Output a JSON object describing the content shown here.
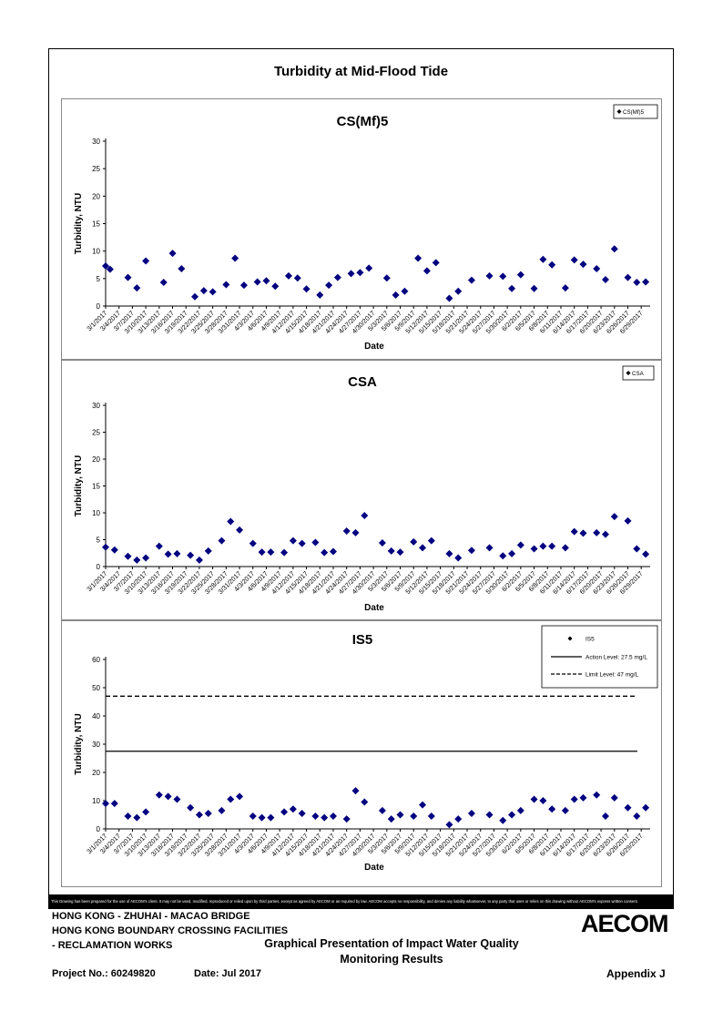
{
  "page": {
    "title": "Turbidity at Mid-Flood Tide"
  },
  "footer": {
    "notice": "This Drawing has been prepared for the use of AECOM's client. It may not be used, modified, reproduced or relied upon by third parties, except as agreed by AECOM or as required by law. AECOM accepts no responsibility, and denies any liability whatsoever, to any party that uses or relies on this drawing without AECOM's express written consent.",
    "project_line_1": "HONG KONG - ZHUHAI - MACAO BRIDGE",
    "project_line_2": "HONG KONG BOUNDARY CROSSING FACILITIES",
    "project_line_3": "- RECLAMATION WORKS",
    "center_title_1": "Graphical Presentation of Impact Water Quality",
    "center_title_2": "Monitoring Results",
    "project_no": "Project No.: 60249820",
    "date": "Date: Jul 2017",
    "logo": "AECOM",
    "appendix": "Appendix J"
  },
  "chart_data": [
    {
      "type": "scatter",
      "title": "CS(Mf)5",
      "xlabel": "Date",
      "ylabel": "Turbidity, NTU",
      "ylim": [
        0,
        30
      ],
      "yticks": [
        0,
        5,
        10,
        15,
        20,
        25,
        30
      ],
      "grid": false,
      "legend": "top-right",
      "tick_labels": [
        "3/1/2017",
        "3/4/2017",
        "3/7/2017",
        "3/10/2017",
        "3/13/2017",
        "3/16/2017",
        "3/19/2017",
        "3/22/2017",
        "3/25/2017",
        "3/28/2017",
        "3/31/2017",
        "4/3/2017",
        "4/6/2017",
        "4/9/2017",
        "4/12/2017",
        "4/15/2017",
        "4/18/2017",
        "4/21/2017",
        "4/24/2017",
        "4/27/2017",
        "4/30/2017",
        "5/3/2017",
        "5/6/2017",
        "5/9/2017",
        "5/12/2017",
        "5/15/2017",
        "5/18/2017",
        "5/21/2017",
        "5/24/2017",
        "5/27/2017",
        "5/30/2017",
        "6/2/2017",
        "6/5/2017",
        "6/8/2017",
        "6/11/2017",
        "6/14/2017",
        "6/17/2017",
        "6/20/2017",
        "6/23/2017",
        "6/26/2017",
        "6/29/2017"
      ],
      "series": [
        {
          "name": "CS(Mf)5",
          "color": "#000080",
          "marker": "diamond",
          "x": [
            "3/1/2017",
            "3/2/2017",
            "3/6/2017",
            "3/8/2017",
            "3/10/2017",
            "3/14/2017",
            "3/16/2017",
            "3/18/2017",
            "3/21/2017",
            "3/23/2017",
            "3/25/2017",
            "3/28/2017",
            "3/30/2017",
            "4/1/2017",
            "4/4/2017",
            "4/6/2017",
            "4/8/2017",
            "4/11/2017",
            "4/13/2017",
            "4/15/2017",
            "4/18/2017",
            "4/20/2017",
            "4/22/2017",
            "4/25/2017",
            "4/27/2017",
            "4/29/2017",
            "5/3/2017",
            "5/5/2017",
            "5/7/2017",
            "5/10/2017",
            "5/12/2017",
            "5/14/2017",
            "5/17/2017",
            "5/19/2017",
            "5/22/2017",
            "5/26/2017",
            "5/29/2017",
            "5/31/2017",
            "6/2/2017",
            "6/5/2017",
            "6/7/2017",
            "6/9/2017",
            "6/12/2017",
            "6/14/2017",
            "6/16/2017",
            "6/19/2017",
            "6/21/2017",
            "6/23/2017",
            "6/26/2017",
            "6/28/2017",
            "6/30/2017"
          ],
          "y": [
            7.3,
            6.7,
            5.2,
            3.3,
            8.2,
            4.3,
            9.6,
            6.8,
            1.7,
            2.8,
            2.6,
            3.9,
            8.7,
            3.8,
            4.4,
            4.6,
            3.6,
            5.5,
            5.1,
            3.1,
            2.0,
            3.8,
            5.2,
            5.9,
            6.1,
            6.9,
            5.1,
            2.0,
            2.7,
            8.7,
            6.4,
            7.9,
            1.4,
            2.7,
            4.7,
            5.5,
            5.4,
            3.2,
            5.7,
            3.2,
            8.5,
            7.5,
            3.3,
            8.4,
            7.6,
            6.8,
            4.8,
            10.4,
            5.2,
            4.3,
            4.4
          ]
        }
      ]
    },
    {
      "type": "scatter",
      "title": "CSA",
      "xlabel": "Date",
      "ylabel": "Turbidity, NTU",
      "ylim": [
        0,
        30
      ],
      "yticks": [
        0,
        5,
        10,
        15,
        20,
        25,
        30
      ],
      "grid": false,
      "legend": "top-right",
      "tick_labels": [
        "3/1/2017",
        "3/4/2017",
        "3/7/2017",
        "3/10/2017",
        "3/13/2017",
        "3/16/2017",
        "3/19/2017",
        "3/22/2017",
        "3/25/2017",
        "3/28/2017",
        "3/31/2017",
        "4/3/2017",
        "4/6/2017",
        "4/9/2017",
        "4/12/2017",
        "4/15/2017",
        "4/18/2017",
        "4/21/2017",
        "4/24/2017",
        "4/27/2017",
        "4/30/2017",
        "5/3/2017",
        "5/6/2017",
        "5/9/2017",
        "5/12/2017",
        "5/15/2017",
        "5/18/2017",
        "5/21/2017",
        "5/24/2017",
        "5/27/2017",
        "5/30/2017",
        "6/2/2017",
        "6/5/2017",
        "6/8/2017",
        "6/11/2017",
        "6/14/2017",
        "6/17/2017",
        "6/20/2017",
        "6/23/2017",
        "6/26/2017",
        "6/29/2017"
      ],
      "series": [
        {
          "name": "CSA",
          "color": "#000080",
          "marker": "diamond",
          "x": [
            "3/1/2017",
            "3/3/2017",
            "3/6/2017",
            "3/8/2017",
            "3/10/2017",
            "3/13/2017",
            "3/15/2017",
            "3/17/2017",
            "3/20/2017",
            "3/22/2017",
            "3/24/2017",
            "3/27/2017",
            "3/29/2017",
            "3/31/2017",
            "4/3/2017",
            "4/5/2017",
            "4/7/2017",
            "4/10/2017",
            "4/12/2017",
            "4/14/2017",
            "4/17/2017",
            "4/19/2017",
            "4/21/2017",
            "4/24/2017",
            "4/26/2017",
            "4/28/2017",
            "5/2/2017",
            "5/4/2017",
            "5/6/2017",
            "5/9/2017",
            "5/11/2017",
            "5/13/2017",
            "5/17/2017",
            "5/19/2017",
            "5/22/2017",
            "5/26/2017",
            "5/29/2017",
            "5/31/2017",
            "6/2/2017",
            "6/5/2017",
            "6/7/2017",
            "6/9/2017",
            "6/12/2017",
            "6/14/2017",
            "6/16/2017",
            "6/19/2017",
            "6/21/2017",
            "6/23/2017",
            "6/26/2017",
            "6/28/2017",
            "6/30/2017"
          ],
          "y": [
            3.6,
            3.1,
            1.9,
            1.2,
            1.6,
            3.8,
            2.3,
            2.4,
            2.1,
            1.2,
            2.9,
            4.8,
            8.4,
            6.8,
            4.3,
            2.7,
            2.7,
            2.6,
            4.8,
            4.3,
            4.5,
            2.6,
            2.8,
            6.6,
            6.3,
            9.5,
            4.4,
            2.9,
            2.7,
            4.6,
            3.5,
            4.8,
            2.4,
            1.6,
            3.0,
            3.5,
            2.0,
            2.4,
            4.0,
            3.3,
            3.8,
            3.8,
            3.5,
            6.5,
            6.2,
            6.3,
            6.0,
            9.3,
            8.5,
            3.3,
            2.3
          ]
        }
      ]
    },
    {
      "type": "scatter",
      "title": "IS5",
      "xlabel": "Date",
      "ylabel": "Turbidity, NTU",
      "ylim": [
        0,
        60
      ],
      "yticks": [
        0,
        10,
        20,
        30,
        40,
        50,
        60
      ],
      "grid": false,
      "legend": "top-right",
      "tick_labels": [
        "3/1/2017",
        "3/4/2017",
        "3/7/2017",
        "3/10/2017",
        "3/13/2017",
        "3/16/2017",
        "3/19/2017",
        "3/22/2017",
        "3/25/2017",
        "3/28/2017",
        "3/31/2017",
        "4/3/2017",
        "4/6/2017",
        "4/9/2017",
        "4/12/2017",
        "4/15/2017",
        "4/18/2017",
        "4/21/2017",
        "4/24/2017",
        "4/27/2017",
        "4/30/2017",
        "5/3/2017",
        "5/6/2017",
        "5/9/2017",
        "5/12/2017",
        "5/15/2017",
        "5/18/2017",
        "5/21/2017",
        "5/24/2017",
        "5/27/2017",
        "5/30/2017",
        "6/2/2017",
        "6/5/2017",
        "6/8/2017",
        "6/11/2017",
        "6/14/2017",
        "6/17/2017",
        "6/20/2017",
        "6/23/2017",
        "6/26/2017",
        "6/29/2017"
      ],
      "reference_lines": [
        {
          "name": "Action Level: 27.5 mg/L",
          "y": 27.5,
          "style": "solid",
          "color": "#000000"
        },
        {
          "name": "Limit Level: 47 mg/L",
          "y": 47,
          "style": "dashed",
          "color": "#000000"
        }
      ],
      "series": [
        {
          "name": "IS5",
          "color": "#000080",
          "marker": "diamond",
          "x": [
            "3/1/2017",
            "3/3/2017",
            "3/6/2017",
            "3/8/2017",
            "3/10/2017",
            "3/13/2017",
            "3/15/2017",
            "3/17/2017",
            "3/20/2017",
            "3/22/2017",
            "3/24/2017",
            "3/27/2017",
            "3/29/2017",
            "3/31/2017",
            "4/3/2017",
            "4/5/2017",
            "4/7/2017",
            "4/10/2017",
            "4/12/2017",
            "4/14/2017",
            "4/17/2017",
            "4/19/2017",
            "4/21/2017",
            "4/24/2017",
            "4/26/2017",
            "4/28/2017",
            "5/2/2017",
            "5/4/2017",
            "5/6/2017",
            "5/9/2017",
            "5/11/2017",
            "5/13/2017",
            "5/17/2017",
            "5/19/2017",
            "5/22/2017",
            "5/26/2017",
            "5/29/2017",
            "5/31/2017",
            "6/2/2017",
            "6/5/2017",
            "6/7/2017",
            "6/9/2017",
            "6/12/2017",
            "6/14/2017",
            "6/16/2017",
            "6/19/2017",
            "6/21/2017",
            "6/23/2017",
            "6/26/2017",
            "6/28/2017",
            "6/30/2017"
          ],
          "y": [
            9.0,
            9.0,
            4.5,
            4.0,
            6.0,
            12.0,
            11.5,
            10.5,
            7.5,
            5.0,
            5.5,
            6.5,
            10.5,
            11.5,
            4.5,
            4.0,
            4.0,
            6.0,
            7.0,
            5.5,
            4.5,
            4.0,
            4.5,
            3.5,
            13.5,
            9.5,
            6.5,
            3.5,
            5.0,
            4.5,
            8.5,
            4.5,
            1.5,
            3.5,
            5.5,
            5.0,
            3.0,
            5.0,
            6.5,
            10.5,
            10.0,
            7.0,
            6.5,
            10.5,
            11.0,
            12.0,
            4.5,
            11.0,
            7.5,
            4.5,
            7.5
          ]
        }
      ]
    }
  ]
}
